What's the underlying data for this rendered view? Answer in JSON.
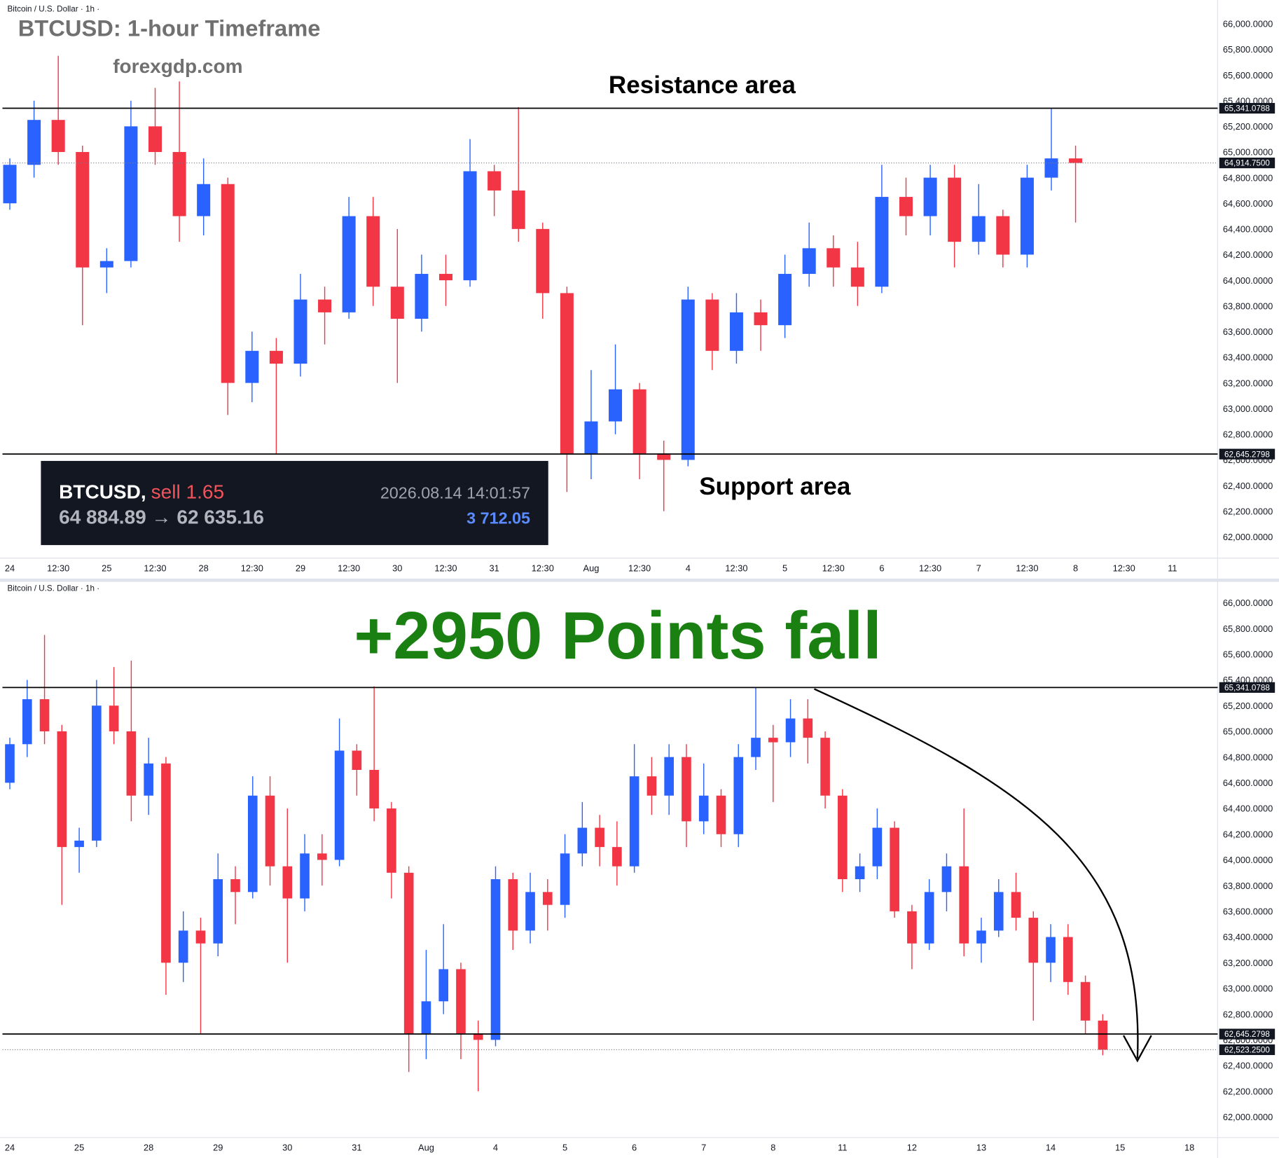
{
  "chart_data": [
    {
      "type": "candlestick",
      "symbol": "Bitcoin / U.S. Dollar · 1h ·",
      "title": "BTCUSD: 1-hour Timeframe",
      "subtitle": "forexgdp.com",
      "annotations": [
        "Resistance area",
        "Support area"
      ],
      "up_color": "#2962ff",
      "down_color": "#f23645",
      "grid": false,
      "categories": [
        "24",
        null,
        "12:30",
        null,
        "25",
        null,
        "12:30",
        null,
        "28",
        null,
        "12:30",
        null,
        "29",
        null,
        "12:30",
        null,
        "30",
        null,
        "12:30",
        null,
        "31",
        null,
        "12:30",
        null,
        "Aug",
        null,
        "12:30",
        null,
        "4",
        null,
        "12:30",
        null,
        "5",
        null,
        "12:30",
        null,
        "6",
        null,
        "12:30",
        null,
        "7",
        null,
        "12:30",
        null,
        "8",
        null,
        "12:30",
        null,
        "11"
      ],
      "open": [
        64600,
        64900,
        65250,
        65000,
        64100,
        64150,
        65200,
        65000,
        64500,
        64750,
        63200,
        63450,
        63350,
        63850,
        63750,
        64500,
        63950,
        63700,
        64050,
        64000,
        64850,
        64700,
        64400,
        63900,
        62650,
        62900,
        63150,
        62650,
        62600,
        63850,
        63450,
        63750,
        63650,
        64050,
        64250,
        64100,
        63950,
        64650,
        64500,
        64800,
        64300,
        64500,
        64200,
        64800,
        64950,
        null,
        null,
        null,
        null
      ],
      "high": [
        64950,
        65400,
        65750,
        65050,
        64250,
        65400,
        65500,
        65550,
        64950,
        64800,
        63600,
        63550,
        64050,
        63950,
        64650,
        64650,
        64400,
        64200,
        64200,
        65100,
        64900,
        65350,
        64450,
        63950,
        63300,
        63500,
        63200,
        62750,
        63950,
        63900,
        63900,
        63850,
        64200,
        64450,
        64350,
        64300,
        64900,
        64800,
        64900,
        64900,
        64750,
        64550,
        64900,
        65340,
        65050,
        null,
        null,
        null,
        null
      ],
      "low": [
        64550,
        64800,
        64900,
        63650,
        63900,
        64100,
        64900,
        64300,
        64350,
        62950,
        63050,
        62650,
        63250,
        63500,
        63700,
        63800,
        63200,
        63600,
        63800,
        63950,
        64500,
        64300,
        63700,
        62350,
        62450,
        62800,
        62450,
        62200,
        62550,
        63300,
        63350,
        63450,
        63550,
        63950,
        63950,
        63800,
        63900,
        64350,
        64350,
        64100,
        64200,
        64100,
        64100,
        64700,
        64450,
        null,
        null,
        null,
        null
      ],
      "close": [
        64900,
        65250,
        65000,
        64100,
        64150,
        65200,
        65000,
        64500,
        64750,
        63200,
        63450,
        63350,
        63850,
        63750,
        64500,
        63950,
        63700,
        64050,
        64000,
        64850,
        64700,
        64400,
        63900,
        62650,
        62900,
        63150,
        62650,
        62600,
        63850,
        63450,
        63750,
        63650,
        64050,
        64250,
        64100,
        63950,
        64650,
        64500,
        64800,
        64300,
        64500,
        64200,
        64800,
        64950,
        64914.75,
        null,
        null,
        null,
        null
      ],
      "ylim": [
        61834,
        66153
      ],
      "yticks": [
        {
          "value": 62000,
          "label": "62,000.0000"
        },
        {
          "value": 62200,
          "label": "62,200.0000"
        },
        {
          "value": 62400,
          "label": "62,400.0000"
        },
        {
          "value": 62600,
          "label": "62,600.0000"
        },
        {
          "value": 62800,
          "label": "62,800.0000"
        },
        {
          "value": 63000,
          "label": "63,000.0000"
        },
        {
          "value": 63200,
          "label": "63,200.0000"
        },
        {
          "value": 63400,
          "label": "63,400.0000"
        },
        {
          "value": 63600,
          "label": "63,600.0000"
        },
        {
          "value": 63800,
          "label": "63,800.0000"
        },
        {
          "value": 64000,
          "label": "64,000.0000"
        },
        {
          "value": 64200,
          "label": "64,200.0000"
        },
        {
          "value": 64400,
          "label": "64,400.0000"
        },
        {
          "value": 64600,
          "label": "64,600.0000"
        },
        {
          "value": 64800,
          "label": "64,800.0000"
        },
        {
          "value": 65000,
          "label": "65,000.0000"
        },
        {
          "value": 65200,
          "label": "65,200.0000"
        },
        {
          "value": 65400,
          "label": "65,400.0000"
        },
        {
          "value": 65600,
          "label": "65,600.0000"
        },
        {
          "value": 65800,
          "label": "65,800.0000"
        },
        {
          "value": 66000,
          "label": "66,000.0000"
        }
      ],
      "resistance": {
        "value": 65341.0788,
        "label": "65,341.0788"
      },
      "support": {
        "value": 62645.2798,
        "label": "62,645.2798"
      },
      "last_price": {
        "value": 64914.75,
        "label": "64,914.7500"
      },
      "trade": {
        "symbol": "BTCUSD,",
        "side": "sell 1.65",
        "time": "2026.08.14 14:01:57",
        "prices": "64 884.89 → 62 635.16",
        "profit": "3 712.05"
      }
    },
    {
      "type": "candlestick",
      "symbol": "Bitcoin / U.S. Dollar · 1h ·",
      "title": "+2950 Points fall",
      "up_color": "#2962ff",
      "down_color": "#f23645",
      "grid": false,
      "categories": [
        "24",
        null,
        null,
        null,
        "25",
        null,
        null,
        null,
        "28",
        null,
        null,
        null,
        "29",
        null,
        null,
        null,
        "30",
        null,
        null,
        null,
        "31",
        null,
        null,
        null,
        "Aug",
        null,
        null,
        null,
        "4",
        null,
        null,
        null,
        "5",
        null,
        null,
        null,
        "6",
        null,
        null,
        null,
        "7",
        null,
        null,
        null,
        "8",
        null,
        null,
        null,
        "11",
        null,
        null,
        null,
        "12",
        null,
        null,
        null,
        "13",
        null,
        null,
        null,
        "14",
        null,
        null,
        null,
        "15",
        null,
        null,
        null,
        "18"
      ],
      "open": [
        64600,
        64900,
        65250,
        65000,
        64100,
        64150,
        65200,
        65000,
        64500,
        64750,
        63200,
        63450,
        63350,
        63850,
        63750,
        64500,
        63950,
        63700,
        64050,
        64000,
        64850,
        64700,
        64400,
        63900,
        62650,
        62900,
        63150,
        62650,
        62600,
        63850,
        63450,
        63750,
        63650,
        64050,
        64250,
        64100,
        63950,
        64650,
        64500,
        64800,
        64300,
        64500,
        64200,
        64800,
        64950,
        64915,
        65100,
        64950,
        64500,
        63850,
        63950,
        64250,
        63600,
        63350,
        63750,
        63950,
        63350,
        63450,
        63750,
        63550,
        63200,
        63400,
        63050,
        62750,
        null,
        null,
        null,
        null,
        null
      ],
      "high": [
        64950,
        65400,
        65750,
        65050,
        64250,
        65400,
        65500,
        65550,
        64950,
        64800,
        63600,
        63550,
        64050,
        63950,
        64650,
        64650,
        64400,
        64200,
        64200,
        65100,
        64900,
        65350,
        64450,
        63950,
        63300,
        63500,
        63200,
        62750,
        63950,
        63900,
        63900,
        63850,
        64200,
        64450,
        64350,
        64300,
        64900,
        64800,
        64900,
        64900,
        64750,
        64550,
        64900,
        65340,
        65050,
        65250,
        65250,
        65000,
        64550,
        64050,
        64400,
        64300,
        63650,
        63850,
        64050,
        64400,
        63550,
        63850,
        63900,
        63600,
        63500,
        63500,
        63100,
        62800,
        null,
        null,
        null,
        null,
        null
      ],
      "low": [
        64550,
        64800,
        64900,
        63650,
        63900,
        64100,
        64900,
        64300,
        64350,
        62950,
        63050,
        62650,
        63250,
        63500,
        63700,
        63800,
        63200,
        63600,
        63800,
        63950,
        64500,
        64300,
        63700,
        62350,
        62450,
        62800,
        62450,
        62200,
        62550,
        63300,
        63350,
        63450,
        63550,
        63950,
        63950,
        63800,
        63900,
        64350,
        64350,
        64100,
        64200,
        64100,
        64100,
        64700,
        64450,
        64800,
        64750,
        64400,
        63750,
        63750,
        63850,
        63550,
        63150,
        63300,
        63600,
        63250,
        63200,
        63400,
        63450,
        62750,
        63050,
        62950,
        62650,
        62480,
        null,
        null,
        null,
        null,
        null
      ],
      "close": [
        64900,
        65250,
        65000,
        64100,
        64150,
        65200,
        65000,
        64500,
        64750,
        63200,
        63450,
        63350,
        63850,
        63750,
        64500,
        63950,
        63700,
        64050,
        64000,
        64850,
        64700,
        64400,
        63900,
        62650,
        62900,
        63150,
        62650,
        62600,
        63850,
        63450,
        63750,
        63650,
        64050,
        64250,
        64100,
        63950,
        64650,
        64500,
        64800,
        64300,
        64500,
        64200,
        64800,
        64950,
        64914.75,
        65100,
        64950,
        64500,
        63850,
        63950,
        64250,
        63600,
        63350,
        63750,
        63950,
        63350,
        63450,
        63750,
        63550,
        63200,
        63400,
        63050,
        62750,
        62523.25,
        null,
        null,
        null,
        null,
        null
      ],
      "ylim": [
        61840,
        66150
      ],
      "yticks": [
        {
          "value": 62000,
          "label": "62,000.0000"
        },
        {
          "value": 62200,
          "label": "62,200.0000"
        },
        {
          "value": 62400,
          "label": "62,400.0000"
        },
        {
          "value": 62600,
          "label": "62,600.0000"
        },
        {
          "value": 62800,
          "label": "62,800.0000"
        },
        {
          "value": 63000,
          "label": "63,000.0000"
        },
        {
          "value": 63200,
          "label": "63,200.0000"
        },
        {
          "value": 63400,
          "label": "63,400.0000"
        },
        {
          "value": 63600,
          "label": "63,600.0000"
        },
        {
          "value": 63800,
          "label": "63,800.0000"
        },
        {
          "value": 64000,
          "label": "64,000.0000"
        },
        {
          "value": 64200,
          "label": "64,200.0000"
        },
        {
          "value": 64400,
          "label": "64,400.0000"
        },
        {
          "value": 64600,
          "label": "64,600.0000"
        },
        {
          "value": 64800,
          "label": "64,800.0000"
        },
        {
          "value": 65000,
          "label": "65,000.0000"
        },
        {
          "value": 65200,
          "label": "65,200.0000"
        },
        {
          "value": 65400,
          "label": "65,400.0000"
        },
        {
          "value": 65600,
          "label": "65,600.0000"
        },
        {
          "value": 65800,
          "label": "65,800.0000"
        },
        {
          "value": 66000,
          "label": "66,000.0000"
        }
      ],
      "resistance": {
        "value": 65341.0788,
        "label": "65,341.0788"
      },
      "support": {
        "value": 62645.2798,
        "label": "62,645.2798"
      },
      "last_price": {
        "value": 62523.25,
        "label": "62,523.2500"
      }
    }
  ]
}
